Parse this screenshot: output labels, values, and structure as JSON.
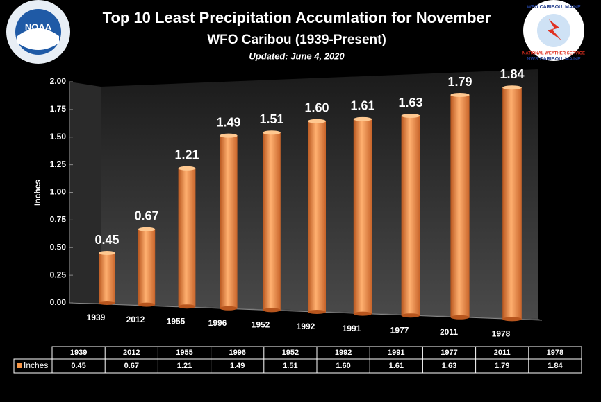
{
  "chart_data": {
    "type": "bar3d",
    "title": "Top 10 Least Precipitation Accumlation for November",
    "subtitle": "WFO Caribou (1939-Present)",
    "note": "Updated:  June 4, 2020",
    "ylabel": "Inches",
    "categories": [
      "1939",
      "2012",
      "1955",
      "1996",
      "1952",
      "1992",
      "1991",
      "1977",
      "2011",
      "1978"
    ],
    "series": [
      {
        "name": "Inches",
        "color": "#f79646",
        "values": [
          0.45,
          0.67,
          1.21,
          1.49,
          1.51,
          1.6,
          1.61,
          1.63,
          1.79,
          1.84
        ],
        "value_labels": [
          "0.45",
          "0.67",
          "1.21",
          "1.49",
          "1.51",
          "1.60",
          "1.61",
          "1.63",
          "1.79",
          "1.84"
        ]
      }
    ],
    "ylim": [
      0,
      2
    ],
    "yticks": [
      {
        "value": 0,
        "label": "0.00"
      },
      {
        "value": 0.25,
        "label": "0.25"
      },
      {
        "value": 0.5,
        "label": "0.50"
      },
      {
        "value": 0.75,
        "label": "0.75"
      },
      {
        "value": 1,
        "label": "1.00"
      },
      {
        "value": 1.25,
        "label": "1.25"
      },
      {
        "value": 1.5,
        "label": "1.50"
      },
      {
        "value": 1.75,
        "label": "1.75"
      },
      {
        "value": 2,
        "label": "2.00"
      }
    ],
    "logos": {
      "noaa": "NOAA",
      "nws_top": "WFO CARIBOU, MAINE",
      "nws_middle": "NATIONAL WEATHER SERVICE",
      "nws_bottom": "NWS CARIBOU, MAINE"
    }
  }
}
